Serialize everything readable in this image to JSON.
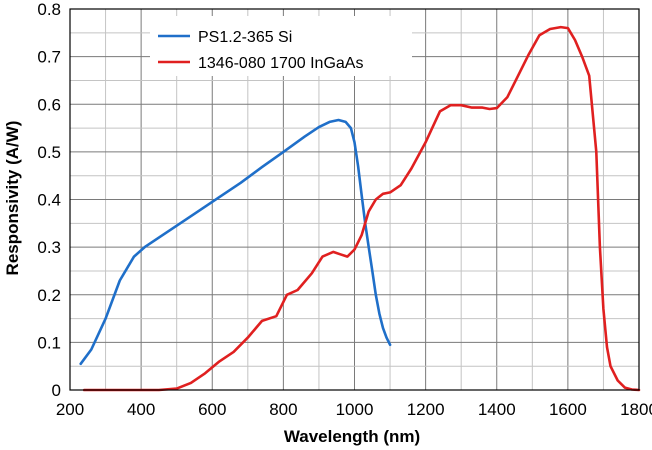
{
  "chart_data": {
    "type": "line",
    "title": "",
    "xlabel": "Wavelength (nm)",
    "ylabel": "Responsivity (A/W)",
    "xlim": [
      200,
      1800
    ],
    "ylim": [
      0,
      0.8
    ],
    "x_ticks": [
      200,
      400,
      600,
      800,
      1000,
      1200,
      1400,
      1600,
      1800
    ],
    "y_ticks": [
      0,
      0.1,
      0.2,
      0.3,
      0.4,
      0.5,
      0.6,
      0.7,
      0.8
    ],
    "x_tick_labels": [
      "200",
      "400",
      "600",
      "800",
      "1000",
      "1200",
      "1400",
      "1600",
      "1800"
    ],
    "y_tick_labels": [
      "0",
      "0.1",
      "0.2",
      "0.3",
      "0.4",
      "0.5",
      "0.6",
      "0.7",
      "0.8"
    ],
    "grid": true,
    "legend_position": "top-left",
    "series": [
      {
        "name": "PS1.2-365 Si",
        "color": "#1f6fc9",
        "x": [
          230,
          260,
          300,
          340,
          380,
          410,
          450,
          500,
          560,
          620,
          680,
          740,
          800,
          860,
          900,
          930,
          955,
          975,
          990,
          1000,
          1010,
          1020,
          1030,
          1040,
          1050,
          1060,
          1070,
          1080,
          1090,
          1100
        ],
        "y": [
          0.055,
          0.085,
          0.15,
          0.23,
          0.28,
          0.3,
          0.32,
          0.345,
          0.375,
          0.405,
          0.435,
          0.468,
          0.5,
          0.532,
          0.552,
          0.563,
          0.567,
          0.563,
          0.55,
          0.52,
          0.47,
          0.41,
          0.35,
          0.3,
          0.25,
          0.2,
          0.16,
          0.13,
          0.11,
          0.095
        ]
      },
      {
        "name": "1346-080 1700 InGaAs",
        "color": "#e02020",
        "x": [
          240,
          350,
          450,
          500,
          540,
          580,
          620,
          660,
          700,
          740,
          780,
          810,
          840,
          880,
          910,
          940,
          960,
          980,
          1000,
          1020,
          1040,
          1060,
          1080,
          1100,
          1130,
          1160,
          1200,
          1240,
          1270,
          1300,
          1330,
          1360,
          1380,
          1400,
          1430,
          1460,
          1490,
          1520,
          1550,
          1580,
          1600,
          1620,
          1640,
          1660,
          1680,
          1690,
          1700,
          1710,
          1720,
          1740,
          1760,
          1780,
          1800
        ],
        "y": [
          0.0,
          0.0,
          0.0,
          0.003,
          0.015,
          0.035,
          0.06,
          0.08,
          0.11,
          0.145,
          0.155,
          0.2,
          0.21,
          0.245,
          0.28,
          0.29,
          0.285,
          0.28,
          0.295,
          0.325,
          0.375,
          0.4,
          0.412,
          0.415,
          0.43,
          0.465,
          0.52,
          0.585,
          0.598,
          0.598,
          0.593,
          0.593,
          0.59,
          0.592,
          0.615,
          0.66,
          0.705,
          0.745,
          0.758,
          0.762,
          0.76,
          0.735,
          0.7,
          0.66,
          0.5,
          0.3,
          0.17,
          0.09,
          0.05,
          0.02,
          0.005,
          0.001,
          0.0
        ]
      }
    ]
  }
}
